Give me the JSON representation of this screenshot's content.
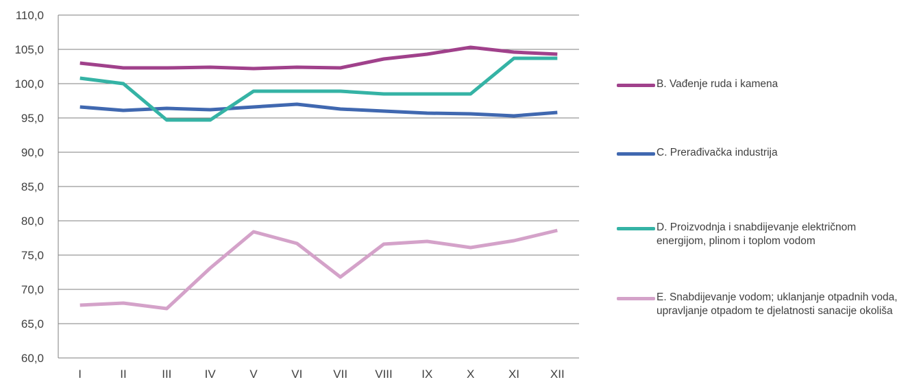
{
  "chart_data": {
    "type": "line",
    "title": "",
    "xlabel": "",
    "ylabel": "",
    "ylim": [
      60,
      110
    ],
    "y_ticks": [
      "60,0",
      "65,0",
      "70,0",
      "75,0",
      "80,0",
      "85,0",
      "90,0",
      "95,0",
      "100,0",
      "105,0",
      "110,0"
    ],
    "grid": true,
    "legend_position": "right",
    "categories": [
      "I",
      "II",
      "III",
      "IV",
      "V",
      "VI",
      "VII",
      "VIII",
      "IX",
      "X",
      "XI",
      "XII"
    ],
    "series": [
      {
        "name": "B. Vađenje ruda i kamena",
        "color": "#a0418b",
        "values": [
          103.0,
          102.3,
          102.3,
          102.4,
          102.2,
          102.4,
          102.3,
          103.6,
          104.3,
          105.3,
          104.6,
          104.3
        ]
      },
      {
        "name": "C. Prerađivačka industrija",
        "color": "#4068b0",
        "values": [
          96.6,
          96.1,
          96.4,
          96.2,
          96.6,
          97.0,
          96.3,
          96.0,
          95.7,
          95.6,
          95.3,
          95.8
        ]
      },
      {
        "name": "D. Proizvodnja i snabdijevanje električnom energijom, plinom i toplom vodom",
        "color": "#35b3a5",
        "values": [
          100.8,
          100.0,
          94.7,
          94.7,
          98.9,
          98.9,
          98.9,
          98.5,
          98.5,
          98.5,
          103.7,
          103.7
        ]
      },
      {
        "name": "E. Snabdijevanje vodom; uklanjanje otpadnih voda, upravljanje otpadom te djelatnosti sanacije okoliša",
        "color": "#d4a2c9",
        "values": [
          67.7,
          68.0,
          67.2,
          73.1,
          78.4,
          76.7,
          71.8,
          76.6,
          77.0,
          76.1,
          77.1,
          78.6
        ]
      }
    ]
  }
}
